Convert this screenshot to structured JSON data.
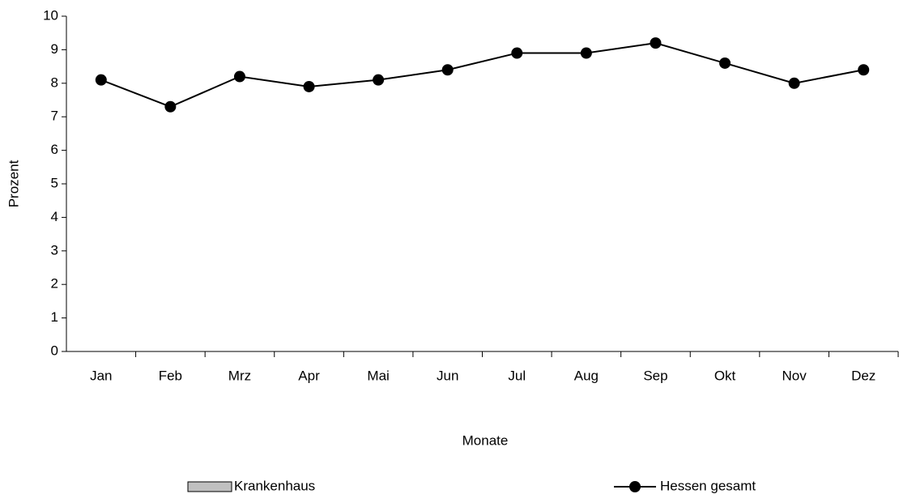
{
  "chart_data": {
    "type": "line",
    "categories": [
      "Jan",
      "Feb",
      "Mrz",
      "Apr",
      "Mai",
      "Jun",
      "Jul",
      "Aug",
      "Sep",
      "Okt",
      "Nov",
      "Dez"
    ],
    "series": [
      {
        "name": "Krankenhaus",
        "type": "bar",
        "color": "#c0c0c0",
        "values": [
          null,
          null,
          null,
          null,
          null,
          null,
          null,
          null,
          null,
          null,
          null,
          null
        ]
      },
      {
        "name": "Hessen gesamt",
        "type": "line",
        "color": "#000000",
        "values": [
          8.1,
          7.3,
          8.2,
          7.9,
          8.1,
          8.4,
          8.9,
          8.9,
          9.2,
          8.6,
          8.0,
          8.4
        ]
      }
    ],
    "ylabel": "Prozent",
    "xlabel": "Monate",
    "ylim": [
      0,
      10
    ],
    "yticks": [
      0,
      1,
      2,
      3,
      4,
      5,
      6,
      7,
      8,
      9,
      10
    ],
    "grid": false,
    "legend": "bottom"
  }
}
